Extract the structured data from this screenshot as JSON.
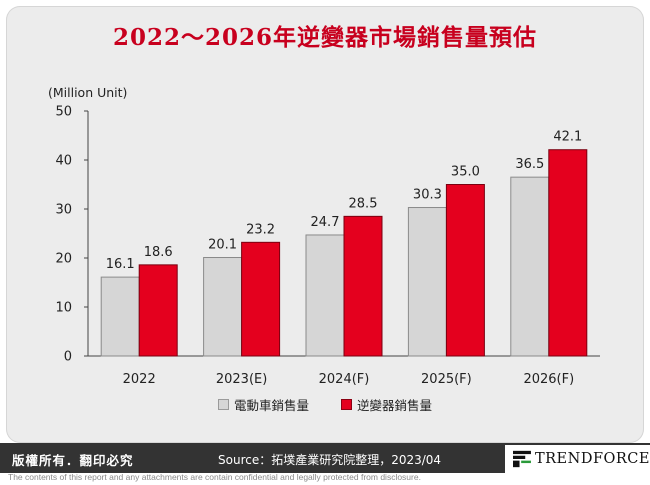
{
  "title": "2022～2026年逆變器市場銷售量預估",
  "footer": {
    "rights": "版權所有．翻印必究",
    "source": "Source：拓墣產業研究院整理，2023/04",
    "brand": "TRENDFORCE",
    "disclaimer": "The contents of this report and any attachments are contain confidential and legally protected from disclosure."
  },
  "colors": {
    "frame_bg": "#ececec",
    "series_1": "#d6d6d6",
    "series_2": "#e4001e",
    "title": "#c8001e",
    "footer_bg": "#333333"
  },
  "chart_data": {
    "type": "bar",
    "categories": [
      "2022",
      "2023(E)",
      "2024(F)",
      "2025(F)",
      "2026(F)"
    ],
    "series": [
      {
        "name": "電動車銷售量",
        "values": [
          16.1,
          20.1,
          24.7,
          30.3,
          36.5
        ]
      },
      {
        "name": "逆變器銷售量",
        "values": [
          18.6,
          23.2,
          28.5,
          35.0,
          42.1
        ]
      }
    ],
    "value_labels": [
      [
        "16.1",
        "20.1",
        "24.7",
        "30.3",
        "36.5"
      ],
      [
        "18.6",
        "23.2",
        "28.5",
        "35.0",
        "42.1"
      ]
    ],
    "ylabel": "(Million Unit)",
    "ylim": [
      0,
      50
    ],
    "yticks": [
      0,
      10,
      20,
      30,
      40,
      50
    ],
    "grid": false,
    "legend": "bottom"
  }
}
